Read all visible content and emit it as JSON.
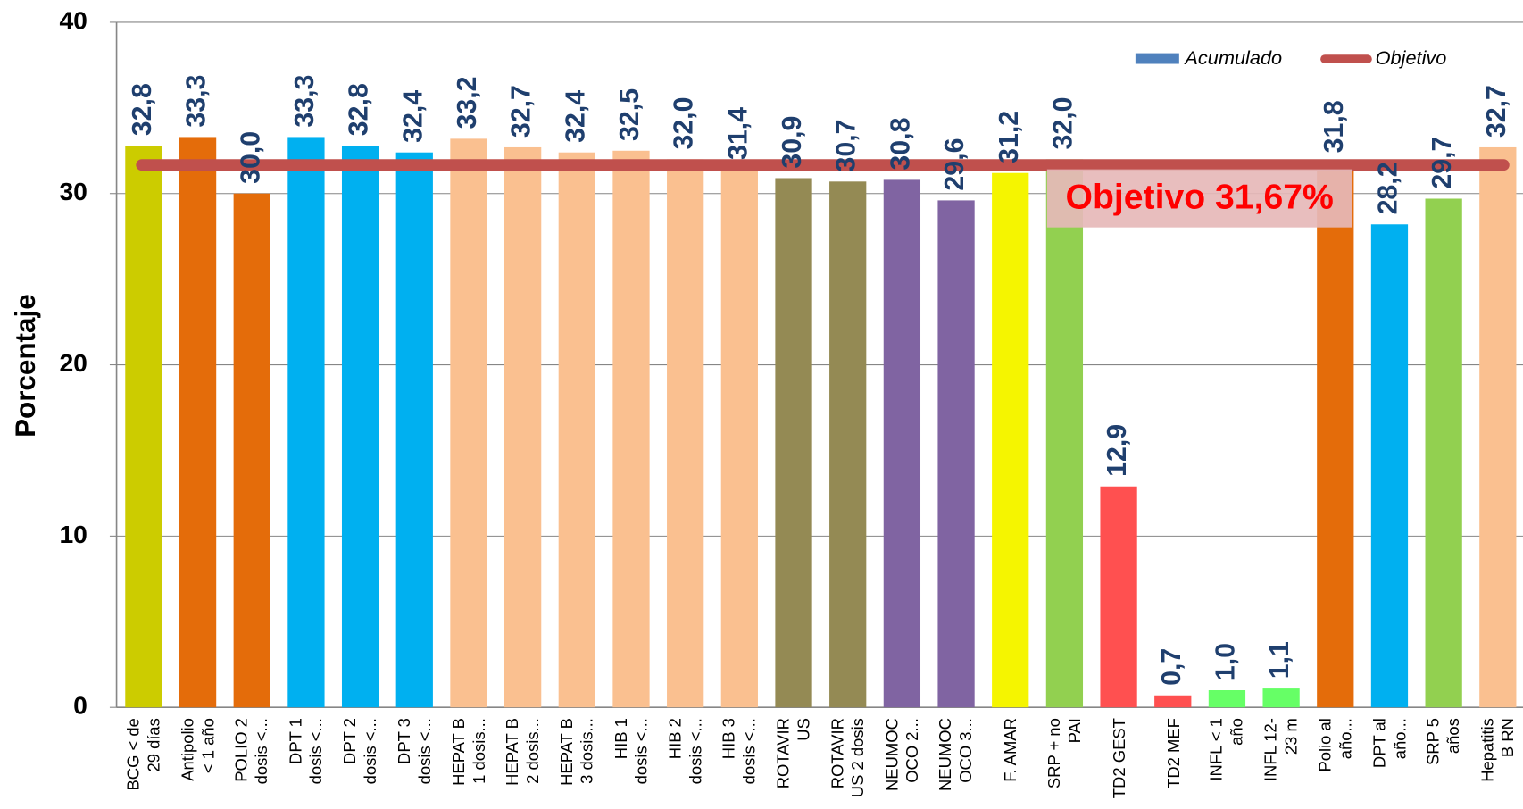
{
  "chart_data": {
    "type": "bar",
    "ylabel": "Porcentaje",
    "categories": [
      "BCG < de\n29 días",
      "Antipolio\n< 1 año",
      "POLIO 2\ndosis <...",
      "DPT 1\ndosis <...",
      "DPT 2\ndosis <...",
      "DPT 3\ndosis <...",
      "HEPAT B\n1 dosis...",
      "HEPAT B\n2 dosis...",
      "HEPAT B\n3 dosis...",
      "HIB 1\ndosis <...",
      "HIB 2\ndosis <...",
      "HIB 3\ndosis <...",
      "ROTAVIR\nUS",
      "ROTAVIR\nUS 2 dosis",
      "NEUMOC\nOCO 2...",
      "NEUMOC\nOCO 3...",
      "F. AMAR",
      "SRP + no\nPAI",
      "TD2 GEST",
      "TD2 MEF",
      "INFL < 1\naño",
      "INFL 12-\n23 m",
      "Polio al\naño...",
      "DPT al\naño...",
      "SRP 5\naños",
      "Hepatitis\nB RN"
    ],
    "series": [
      {
        "name": "Acumulado",
        "color": "#4f81bd",
        "colors": [
          "#cccc00",
          "#e46c0a",
          "#e46c0a",
          "#00b0f0",
          "#00b0f0",
          "#00b0f0",
          "#fac090",
          "#fac090",
          "#fac090",
          "#fac090",
          "#fac090",
          "#fac090",
          "#948a54",
          "#948a54",
          "#8064a2",
          "#8064a2",
          "#f5f500",
          "#92d050",
          "#ff5050",
          "#ff5050",
          "#66ff66",
          "#66ff66",
          "#e46c0a",
          "#00b0f0",
          "#92d050",
          "#fac090"
        ],
        "values": [
          32.8,
          33.3,
          30.0,
          33.3,
          32.8,
          32.4,
          33.2,
          32.7,
          32.4,
          32.5,
          32.0,
          31.4,
          30.9,
          30.7,
          30.8,
          29.6,
          31.2,
          32.0,
          12.9,
          0.7,
          1.0,
          1.1,
          31.8,
          28.2,
          29.7,
          32.7
        ],
        "value_labels": [
          "32,8",
          "33,3",
          "30,0",
          "33,3",
          "32,8",
          "32,4",
          "33,2",
          "32,7",
          "32,4",
          "32,5",
          "32,0",
          "31,4",
          "30,9",
          "30,7",
          "30,8",
          "29,6",
          "31,2",
          "32,0",
          "12,9",
          "0,7",
          "1,0",
          "1,1",
          "31,8",
          "28,2",
          "29,7",
          "32,7"
        ]
      }
    ],
    "target": {
      "name": "Objetivo",
      "value": 31.67,
      "color": "#c0504d"
    },
    "annotation": "Objetivo 31,67%",
    "ylim": [
      0,
      40
    ],
    "yticks": [
      0,
      10,
      20,
      30,
      40
    ],
    "grid": true,
    "legend": "top-right"
  }
}
